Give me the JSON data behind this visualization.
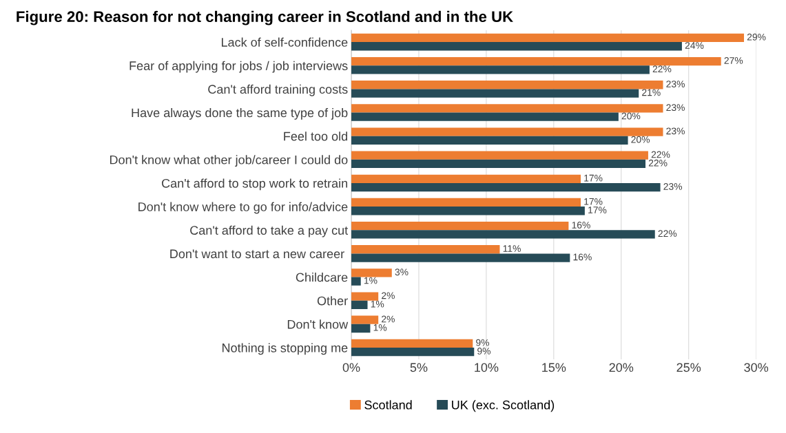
{
  "chart_data": {
    "type": "bar",
    "orientation": "horizontal",
    "title": "Figure 20: Reason for not changing career in Scotland and in the UK",
    "categories": [
      "Lack of self-confidence",
      "Fear of applying for jobs / job interviews",
      "Can't afford training costs",
      "Have always done the same type of job",
      "Feel too old",
      "Don't know what other job/career I could do",
      "Can't afford to stop work to retrain",
      "Don't know where to go for info/advice",
      "Can't afford to take a pay cut",
      "Don't want to start a new career ",
      "Childcare",
      "Other",
      "Don't know",
      "Nothing is stopping me"
    ],
    "series": [
      {
        "name": "Scotland",
        "color": "#ed7d31",
        "values": [
          29.1,
          27.4,
          23.1,
          23.1,
          23.1,
          22.0,
          17.0,
          17.0,
          16.1,
          11.0,
          3.0,
          2.0,
          2.0,
          9.0
        ],
        "value_labels": [
          "29%",
          "27%",
          "23%",
          "23%",
          "23%",
          "22%",
          "17%",
          "17%",
          "16%",
          "11%",
          "3%",
          "2%",
          "2%",
          "9%"
        ]
      },
      {
        "name": "UK (exc. Scotland)",
        "color": "#264b57",
        "values": [
          24.5,
          22.1,
          21.3,
          19.8,
          20.5,
          21.8,
          22.9,
          17.3,
          22.5,
          16.2,
          0.7,
          1.2,
          1.4,
          9.1
        ],
        "value_labels": [
          "24%",
          "22%",
          "21%",
          "20%",
          "20%",
          "22%",
          "23%",
          "17%",
          "22%",
          "16%",
          "1%",
          "1%",
          "1%",
          "9%"
        ]
      }
    ],
    "xlim": [
      0,
      30
    ],
    "xticks": [
      {
        "value": 0,
        "label": "0%"
      },
      {
        "value": 5,
        "label": "5%"
      },
      {
        "value": 10,
        "label": "10%"
      },
      {
        "value": 15,
        "label": "15%"
      },
      {
        "value": 20,
        "label": "20%"
      },
      {
        "value": 25,
        "label": "25%"
      },
      {
        "value": 30,
        "label": "30%"
      }
    ],
    "grid": "x",
    "legend": "bottom"
  }
}
